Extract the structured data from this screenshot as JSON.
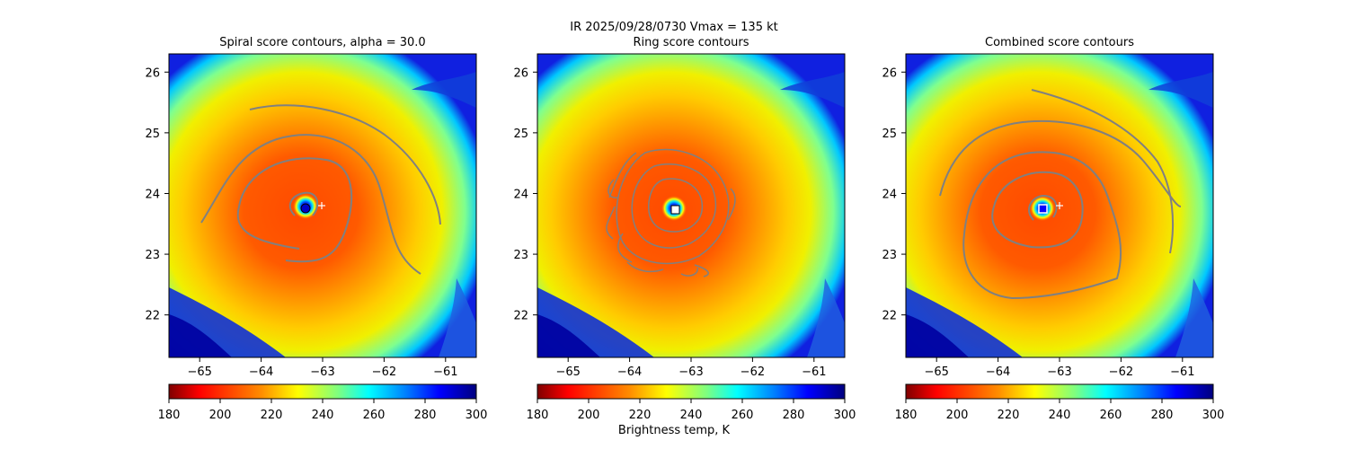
{
  "suptitle_line": "IR  2025/09/28/0730    Vmax = 135 kt",
  "colorbar_label": "Brightness temp, K",
  "colors": {
    "contour": "#808080",
    "background": "#ffffff",
    "marker": "#ffffff"
  },
  "chart_data": [
    {
      "type": "heatmap",
      "title": "Spiral score contours, alpha = 30.0",
      "x_ticks": [
        "−65",
        "−64",
        "−63",
        "−62",
        "−61"
      ],
      "y_ticks": [
        "26",
        "25",
        "24",
        "23",
        "22"
      ],
      "xlim": [
        -65.5,
        -60.5
      ],
      "ylim": [
        21.3,
        26.3
      ],
      "center_marker": {
        "lon": -63.15,
        "lat": 23.72,
        "style": "circle-blue"
      },
      "plus_marker": {
        "lon": -62.9,
        "lat": 23.8
      },
      "colorbar": {
        "ticks": [
          "180",
          "200",
          "220",
          "240",
          "260",
          "280",
          "300"
        ],
        "range": [
          180,
          300
        ]
      }
    },
    {
      "type": "heatmap",
      "title": "Ring score contours",
      "x_ticks": [
        "−65",
        "−64",
        "−63",
        "−62",
        "−61"
      ],
      "y_ticks": [
        "26",
        "25",
        "24",
        "23",
        "22"
      ],
      "xlim": [
        -65.5,
        -60.5
      ],
      "ylim": [
        21.3,
        26.3
      ],
      "square_marker": {
        "lon": -63.05,
        "lat": 23.72
      },
      "colorbar": {
        "ticks": [
          "180",
          "200",
          "220",
          "240",
          "260",
          "280",
          "300"
        ],
        "range": [
          180,
          300
        ]
      }
    },
    {
      "type": "heatmap",
      "title": "Combined score contours",
      "x_ticks": [
        "−65",
        "−64",
        "−63",
        "−62",
        "−61"
      ],
      "y_ticks": [
        "26",
        "25",
        "24",
        "23",
        "22"
      ],
      "xlim": [
        -65.5,
        -60.5
      ],
      "ylim": [
        21.3,
        26.3
      ],
      "center_marker": {
        "lon": -63.15,
        "lat": 23.72,
        "style": "square-blue"
      },
      "plus_marker": {
        "lon": -62.85,
        "lat": 23.8
      },
      "colorbar": {
        "ticks": [
          "180",
          "200",
          "220",
          "240",
          "260",
          "280",
          "300"
        ],
        "range": [
          180,
          300
        ]
      }
    }
  ]
}
